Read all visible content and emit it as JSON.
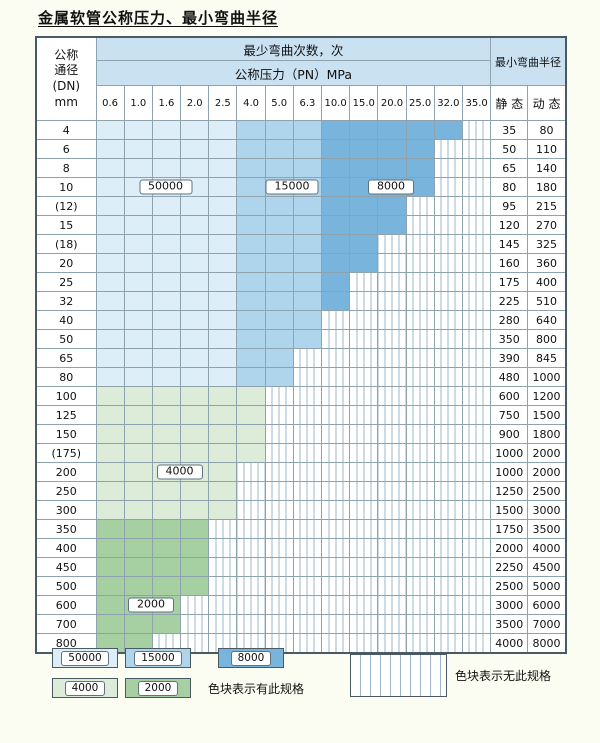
{
  "title": "金属软管公称压力、最小弯曲半径",
  "header": {
    "dn_lines": [
      "公称",
      "通径",
      "(DN)",
      "mm"
    ],
    "bend_times": "最少弯曲次数，次",
    "pressure": "公称压力（PN）MPa",
    "radius": "最小弯曲半径",
    "static": "静 态",
    "dynamic": "动 态"
  },
  "chart_data": {
    "type": "table",
    "title": "金属软管公称压力、最小弯曲半径",
    "pressure_columns_MPa": [
      "0.6",
      "1.0",
      "1.6",
      "2.0",
      "2.5",
      "4.0",
      "5.0",
      "6.3",
      "10.0",
      "15.0",
      "20.0",
      "25.0",
      "32.0",
      "35.0"
    ],
    "bend_cycle_bands": {
      "blue_50000_pressure_cols": "0.6-2.5",
      "blue_15000_pressure_cols": "4.0-6.3",
      "blue_8000_pressure_cols": "10.0 and above",
      "green_4000_dn_rows": "100-300",
      "green_2000_dn_rows": "350-800"
    },
    "rows": [
      {
        "dn": "4",
        "static": "35",
        "dynamic": "80",
        "band": "blue",
        "avail": 13
      },
      {
        "dn": "6",
        "static": "50",
        "dynamic": "110",
        "band": "blue",
        "avail": 12
      },
      {
        "dn": "8",
        "static": "65",
        "dynamic": "140",
        "band": "blue",
        "avail": 12
      },
      {
        "dn": "10",
        "static": "80",
        "dynamic": "180",
        "band": "blue",
        "avail": 12
      },
      {
        "dn": "(12)",
        "static": "95",
        "dynamic": "215",
        "band": "blue",
        "avail": 11
      },
      {
        "dn": "15",
        "static": "120",
        "dynamic": "270",
        "band": "blue",
        "avail": 11
      },
      {
        "dn": "(18)",
        "static": "145",
        "dynamic": "325",
        "band": "blue",
        "avail": 10
      },
      {
        "dn": "20",
        "static": "160",
        "dynamic": "360",
        "band": "blue",
        "avail": 10
      },
      {
        "dn": "25",
        "static": "175",
        "dynamic": "400",
        "band": "blue",
        "avail": 9
      },
      {
        "dn": "32",
        "static": "225",
        "dynamic": "510",
        "band": "blue",
        "avail": 9
      },
      {
        "dn": "40",
        "static": "280",
        "dynamic": "640",
        "band": "blue",
        "avail": 8
      },
      {
        "dn": "50",
        "static": "350",
        "dynamic": "800",
        "band": "blue",
        "avail": 8
      },
      {
        "dn": "65",
        "static": "390",
        "dynamic": "845",
        "band": "blue",
        "avail": 7
      },
      {
        "dn": "80",
        "static": "480",
        "dynamic": "1000",
        "band": "blue",
        "avail": 7
      },
      {
        "dn": "100",
        "static": "600",
        "dynamic": "1200",
        "band": "g4000",
        "avail": 6
      },
      {
        "dn": "125",
        "static": "750",
        "dynamic": "1500",
        "band": "g4000",
        "avail": 6
      },
      {
        "dn": "150",
        "static": "900",
        "dynamic": "1800",
        "band": "g4000",
        "avail": 6
      },
      {
        "dn": "(175)",
        "static": "1000",
        "dynamic": "2000",
        "band": "g4000",
        "avail": 6
      },
      {
        "dn": "200",
        "static": "1000",
        "dynamic": "2000",
        "band": "g4000",
        "avail": 5
      },
      {
        "dn": "250",
        "static": "1250",
        "dynamic": "2500",
        "band": "g4000",
        "avail": 5
      },
      {
        "dn": "300",
        "static": "1500",
        "dynamic": "3000",
        "band": "g4000",
        "avail": 5
      },
      {
        "dn": "350",
        "static": "1750",
        "dynamic": "3500",
        "band": "g2000",
        "avail": 4
      },
      {
        "dn": "400",
        "static": "2000",
        "dynamic": "4000",
        "band": "g2000",
        "avail": 4
      },
      {
        "dn": "450",
        "static": "2250",
        "dynamic": "4500",
        "band": "g2000",
        "avail": 4
      },
      {
        "dn": "500",
        "static": "2500",
        "dynamic": "5000",
        "band": "g2000",
        "avail": 4
      },
      {
        "dn": "600",
        "static": "3000",
        "dynamic": "6000",
        "band": "g2000",
        "avail": 3
      },
      {
        "dn": "700",
        "static": "3500",
        "dynamic": "7000",
        "band": "g2000",
        "avail": 3
      },
      {
        "dn": "800",
        "static": "4000",
        "dynamic": "8000",
        "band": "g2000",
        "avail": 2
      }
    ]
  },
  "annotations": [
    {
      "text": "50000",
      "dn": "10",
      "col_from": 2,
      "col_to": 4
    },
    {
      "text": "15000",
      "dn": "10",
      "col_from": 7,
      "col_to": 8
    },
    {
      "text": "8000",
      "dn": "10",
      "col_from": 10,
      "col_to": 12
    },
    {
      "text": "4000",
      "dn": "200",
      "col_from": 3,
      "col_to": 4
    },
    {
      "text": "2000",
      "dn": "600",
      "col_from": 2,
      "col_to": 3
    }
  ],
  "legend": {
    "items": [
      {
        "label": "50000",
        "band": "c50000"
      },
      {
        "label": "15000",
        "band": "c15000"
      },
      {
        "label": "8000",
        "band": "c8000"
      },
      {
        "label": "4000",
        "band": "c4000"
      },
      {
        "label": "2000",
        "band": "c2000"
      }
    ],
    "available_note": "色块表示有此规格",
    "unavailable_note": "色块表示无此规格"
  },
  "colors": {
    "c50000": "#ddeef9",
    "c15000": "#aed5ec",
    "c8000": "#79b4dc",
    "c4000": "#dcecd8",
    "c2000": "#a6cfa2",
    "header_blue": "#c9e1f1",
    "hatch_line": "#9db5c8",
    "grid_line": "#8fa3ae",
    "outer_border": "#4a5a63",
    "page_bg": "#fbfcf2"
  }
}
